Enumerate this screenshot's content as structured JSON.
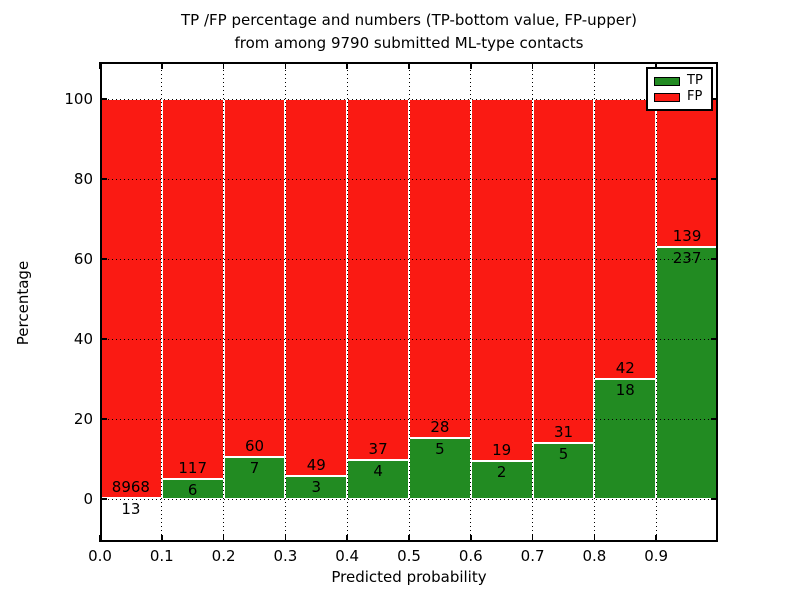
{
  "title_line1": "TP /FP percentage and numbers (TP-bottom value, FP-upper)",
  "title_line2": "from among 9790 submitted ML-type contacts",
  "chart_data": {
    "type": "bar",
    "stacked": true,
    "normalized": "each bin stacked to 100%",
    "title": "TP /FP percentage and numbers (TP-bottom value, FP-upper) from among 9790 submitted ML-type contacts",
    "xlabel": "Predicted probability",
    "ylabel": "Percentage",
    "total_contacts": 9790,
    "bin_edges": [
      0.0,
      0.1,
      0.2,
      0.3,
      0.4,
      0.5,
      0.6,
      0.7,
      0.8,
      0.9,
      1.0
    ],
    "series": [
      {
        "name": "TP",
        "color": "#228b22",
        "counts": [
          13,
          6,
          7,
          3,
          4,
          5,
          2,
          5,
          18,
          237
        ],
        "percent": [
          0.14,
          4.88,
          10.45,
          5.77,
          9.76,
          15.15,
          9.52,
          13.89,
          30.0,
          63.03
        ]
      },
      {
        "name": "FP",
        "color": "#fa1a13",
        "counts": [
          8968,
          117,
          60,
          49,
          37,
          28,
          19,
          31,
          42,
          139
        ],
        "percent": [
          99.86,
          95.12,
          89.55,
          94.23,
          90.24,
          84.85,
          90.48,
          86.11,
          70.0,
          36.97
        ]
      }
    ],
    "xticks": [
      "0.0",
      "0.1",
      "0.2",
      "0.3",
      "0.4",
      "0.5",
      "0.6",
      "0.7",
      "0.8",
      "0.9"
    ],
    "xtick_values": [
      0.0,
      0.1,
      0.2,
      0.3,
      0.4,
      0.5,
      0.6,
      0.7,
      0.8,
      0.9
    ],
    "yticks": [
      "0",
      "20",
      "40",
      "60",
      "80",
      "100"
    ],
    "ytick_values": [
      0,
      20,
      40,
      60,
      80,
      100
    ],
    "xlim": [
      0.0,
      1.0
    ],
    "ylim": [
      -10.75,
      109.25
    ],
    "grid": "dotted black, x and y major",
    "bar_edge_color": "#ffffff",
    "annotation_note": "TP count printed at top of green segment, FP count printed just above it in red segment",
    "legend": {
      "position": "upper right",
      "entries": [
        {
          "label": "TP",
          "color": "#228b22"
        },
        {
          "label": "FP",
          "color": "#fa1a13"
        }
      ]
    }
  }
}
